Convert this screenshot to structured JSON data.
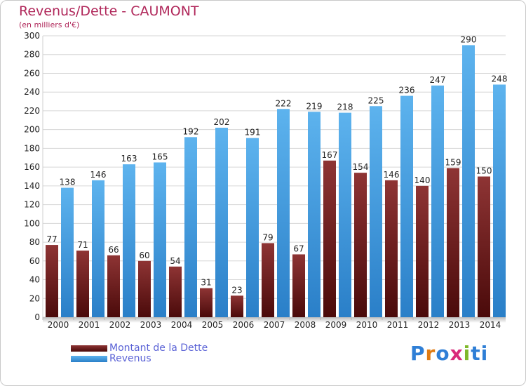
{
  "title": "Revenus/Dette - CAUMONT",
  "subtitle": "(en milliers d'€)",
  "legend": [
    {
      "label": "Montant de la Dette",
      "color": "#7a1f1f"
    },
    {
      "label": "Revenus",
      "color": "#4aa3e6"
    }
  ],
  "logo": {
    "text": "Proxiti",
    "letters": [
      "P",
      "r",
      "o",
      "x",
      "i",
      "t",
      "i"
    ],
    "colors": [
      "#2f7fd6",
      "#e07b12",
      "#2f7fd6",
      "#d92a7a",
      "#7fb82a",
      "#2f7fd6",
      "#2f7fd6"
    ]
  },
  "chart_data": {
    "type": "bar",
    "title": "Revenus/Dette - CAUMONT",
    "ylabel": "(en milliers d'€)",
    "xlabel": "",
    "ylim": [
      0,
      300
    ],
    "ytick_step": 20,
    "grid": true,
    "categories": [
      "2000",
      "2001",
      "2002",
      "2003",
      "2004",
      "2005",
      "2006",
      "2007",
      "2008",
      "2009",
      "2010",
      "2011",
      "2012",
      "2013",
      "2014"
    ],
    "series": [
      {
        "name": "Montant de la Dette",
        "color": "#7a1f1f",
        "values": [
          77,
          71,
          66,
          60,
          54,
          31,
          23,
          79,
          67,
          167,
          154,
          146,
          140,
          159,
          150
        ]
      },
      {
        "name": "Revenus",
        "color": "#4aa3e6",
        "values": [
          138,
          146,
          163,
          165,
          192,
          202,
          191,
          222,
          219,
          218,
          225,
          236,
          247,
          290,
          248
        ]
      }
    ]
  }
}
